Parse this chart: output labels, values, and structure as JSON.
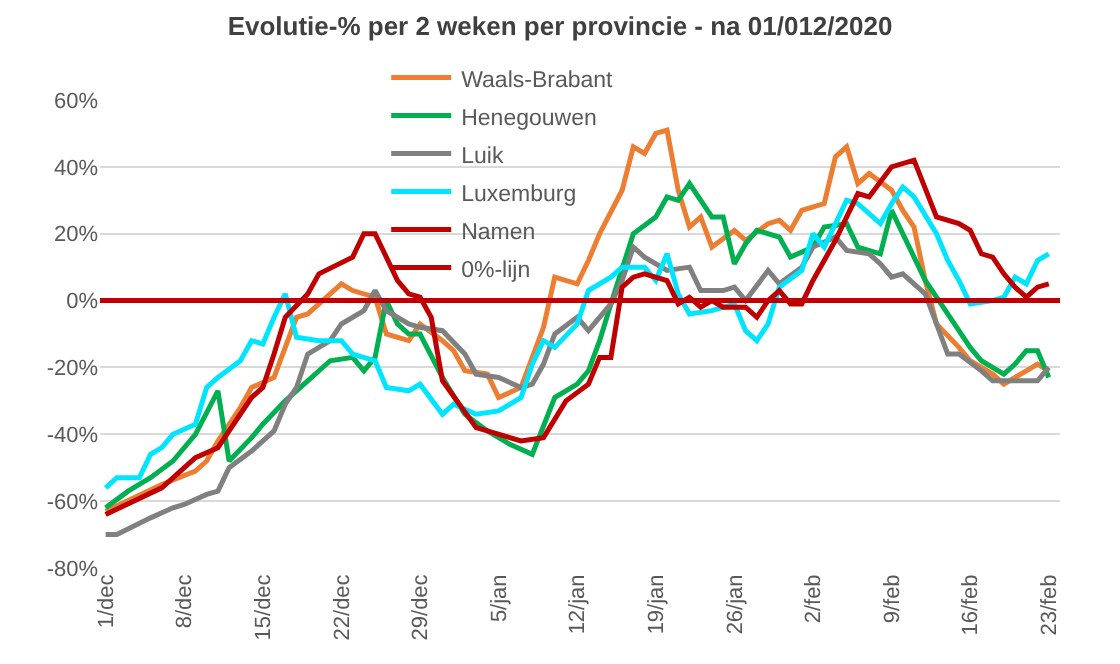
{
  "chart_data": {
    "type": "line",
    "title": "Evolutie-% per 2 weken per provincie - na 01/012/2020",
    "xlim": [
      "2020-11-30T12:00",
      "2021-02-24"
    ],
    "ylim": [
      -80,
      60
    ],
    "xticks": [
      {
        "value": "2020-12-01",
        "label": "1/dec"
      },
      {
        "value": "2020-12-08",
        "label": "8/dec"
      },
      {
        "value": "2020-12-15",
        "label": "15/dec"
      },
      {
        "value": "2020-12-22",
        "label": "22/dec"
      },
      {
        "value": "2020-12-29",
        "label": "29/dec"
      },
      {
        "value": "2021-01-05",
        "label": "5/jan"
      },
      {
        "value": "2021-01-12",
        "label": "12/jan"
      },
      {
        "value": "2021-01-19",
        "label": "19/jan"
      },
      {
        "value": "2021-01-26",
        "label": "26/jan"
      },
      {
        "value": "2021-02-02",
        "label": "2/feb"
      },
      {
        "value": "2021-02-09",
        "label": "9/feb"
      },
      {
        "value": "2021-02-16",
        "label": "16/feb"
      },
      {
        "value": "2021-02-23",
        "label": "23/feb"
      }
    ],
    "yticks": [
      {
        "value": -80,
        "label": "-80%"
      },
      {
        "value": -60,
        "label": "-60%"
      },
      {
        "value": -40,
        "label": "-40%"
      },
      {
        "value": -20,
        "label": "-20%"
      },
      {
        "value": 0,
        "label": "0%"
      },
      {
        "value": 20,
        "label": "20%"
      },
      {
        "value": 40,
        "label": "40%"
      },
      {
        "value": 60,
        "label": "60%"
      }
    ],
    "grid": "y",
    "legend": "top",
    "marker": "none",
    "line_style": "solid",
    "ref_lines": [
      {
        "axis": "y",
        "value": 0,
        "label": "0%-lijn",
        "color": "#c00000"
      }
    ],
    "series": [
      {
        "name": "Waals-Brabant",
        "color": "#ed7d31",
        "x": [
          "2020-12-01",
          "2020-12-06",
          "2020-12-09",
          "2020-12-10",
          "2020-12-11",
          "2020-12-13",
          "2020-12-14",
          "2020-12-16",
          "2020-12-17",
          "2020-12-18",
          "2020-12-19",
          "2020-12-20",
          "2020-12-21",
          "2020-12-22",
          "2020-12-23",
          "2020-12-25",
          "2020-12-26",
          "2020-12-28",
          "2020-12-29",
          "2020-12-31",
          "2021-01-01",
          "2021-01-02",
          "2021-01-04",
          "2021-01-05",
          "2021-01-07",
          "2021-01-08",
          "2021-01-09",
          "2021-01-10",
          "2021-01-12",
          "2021-01-13",
          "2021-01-14",
          "2021-01-16",
          "2021-01-17",
          "2021-01-18",
          "2021-01-19",
          "2021-01-20",
          "2021-01-21",
          "2021-01-22",
          "2021-01-23",
          "2021-01-24",
          "2021-01-26",
          "2021-01-27",
          "2021-01-29",
          "2021-01-30",
          "2021-01-31",
          "2021-02-01",
          "2021-02-03",
          "2021-02-04",
          "2021-02-05",
          "2021-02-06",
          "2021-02-07",
          "2021-02-09",
          "2021-02-10",
          "2021-02-11",
          "2021-02-12",
          "2021-02-13",
          "2021-02-15",
          "2021-02-16",
          "2021-02-18",
          "2021-02-19",
          "2021-02-21",
          "2021-02-22",
          "2021-02-23"
        ],
        "values": [
          -63,
          -55,
          -51,
          -48,
          -42,
          -32,
          -26,
          -23,
          -14,
          -5,
          -4,
          -1,
          2,
          5,
          3,
          1,
          -10,
          -12,
          -7,
          -12,
          -15,
          -21,
          -22,
          -29,
          -26,
          -17,
          -8,
          7,
          5,
          12,
          20,
          33,
          46,
          44,
          50,
          51,
          33,
          22,
          25,
          16,
          21,
          18,
          23,
          24,
          21,
          27,
          29,
          43,
          46,
          35,
          38,
          33,
          27,
          22,
          6,
          -7,
          -14,
          -18,
          -22,
          -25,
          -21,
          -19,
          -21
        ]
      },
      {
        "name": "Henegouwen",
        "color": "#00b050",
        "x": [
          "2020-12-01",
          "2020-12-03",
          "2020-12-05",
          "2020-12-07",
          "2020-12-09",
          "2020-12-11",
          "2020-12-12",
          "2020-12-14",
          "2020-12-15",
          "2020-12-17",
          "2020-12-19",
          "2020-12-21",
          "2020-12-23",
          "2020-12-24",
          "2020-12-25",
          "2020-12-26",
          "2020-12-27",
          "2020-12-28",
          "2020-12-29",
          "2020-12-31",
          "2021-01-02",
          "2021-01-04",
          "2021-01-06",
          "2021-01-08",
          "2021-01-10",
          "2021-01-12",
          "2021-01-13",
          "2021-01-14",
          "2021-01-15",
          "2021-01-17",
          "2021-01-19",
          "2021-01-20",
          "2021-01-21",
          "2021-01-22",
          "2021-01-24",
          "2021-01-25",
          "2021-01-26",
          "2021-01-27",
          "2021-01-28",
          "2021-01-30",
          "2021-01-31",
          "2021-02-02",
          "2021-02-03",
          "2021-02-05",
          "2021-02-06",
          "2021-02-08",
          "2021-02-09",
          "2021-02-11",
          "2021-02-12",
          "2021-02-13",
          "2021-02-15",
          "2021-02-16",
          "2021-02-17",
          "2021-02-19",
          "2021-02-20",
          "2021-02-21",
          "2021-02-22",
          "2021-02-23"
        ],
        "values": [
          -62,
          -57,
          -53,
          -48,
          -40,
          -27,
          -48,
          -41,
          -37,
          -30,
          -24,
          -18,
          -17,
          -21,
          -17,
          0,
          -7,
          -10,
          -10,
          -23,
          -34,
          -39,
          -43,
          -46,
          -29,
          -25,
          -21,
          -12,
          -1,
          20,
          25,
          31,
          30,
          35,
          25,
          25,
          11,
          17,
          21,
          19,
          13,
          16,
          22,
          23,
          16,
          14,
          27,
          13,
          6,
          1,
          -9,
          -14,
          -18,
          -22,
          -19,
          -15,
          -15,
          -23
        ]
      },
      {
        "name": "Luik",
        "color": "#808080",
        "x": [
          "2020-12-01",
          "2020-12-02",
          "2020-12-05",
          "2020-12-07",
          "2020-12-08",
          "2020-12-10",
          "2020-12-11",
          "2020-12-12",
          "2020-12-14",
          "2020-12-16",
          "2020-12-17",
          "2020-12-18",
          "2020-12-19",
          "2020-12-21",
          "2020-12-22",
          "2020-12-24",
          "2020-12-25",
          "2020-12-26",
          "2020-12-28",
          "2020-12-29",
          "2020-12-31",
          "2021-01-02",
          "2021-01-03",
          "2021-01-05",
          "2021-01-07",
          "2021-01-08",
          "2021-01-09",
          "2021-01-10",
          "2021-01-12",
          "2021-01-13",
          "2021-01-15",
          "2021-01-16",
          "2021-01-17",
          "2021-01-18",
          "2021-01-20",
          "2021-01-22",
          "2021-01-23",
          "2021-01-25",
          "2021-01-26",
          "2021-01-27",
          "2021-01-29",
          "2021-01-30",
          "2021-02-01",
          "2021-02-02",
          "2021-02-04",
          "2021-02-05",
          "2021-02-07",
          "2021-02-08",
          "2021-02-09",
          "2021-02-10",
          "2021-02-12",
          "2021-02-13",
          "2021-02-14",
          "2021-02-15",
          "2021-02-17",
          "2021-02-18",
          "2021-02-20",
          "2021-02-22",
          "2021-02-23"
        ],
        "values": [
          -70,
          -70,
          -65,
          -62,
          -61,
          -58,
          -57,
          -50,
          -45,
          -39,
          -31,
          -26,
          -16,
          -12,
          -7,
          -3,
          3,
          -3,
          -7,
          -8,
          -9,
          -16,
          -22,
          -23,
          -26,
          -25,
          -19,
          -10,
          -5,
          -9,
          -1,
          6,
          16,
          13,
          9,
          10,
          3,
          3,
          4,
          0,
          9,
          5,
          10,
          16,
          19,
          15,
          14,
          11,
          7,
          8,
          2,
          -7,
          -16,
          -16,
          -21,
          -24,
          -24,
          -24,
          -20
        ]
      },
      {
        "name": "Luxemburg",
        "color": "#00e5ff",
        "x": [
          "2020-12-01",
          "2020-12-02",
          "2020-12-04",
          "2020-12-05",
          "2020-12-06",
          "2020-12-07",
          "2020-12-09",
          "2020-12-10",
          "2020-12-11",
          "2020-12-13",
          "2020-12-14",
          "2020-12-15",
          "2020-12-16",
          "2020-12-17",
          "2020-12-18",
          "2020-12-20",
          "2020-12-22",
          "2020-12-23",
          "2020-12-25",
          "2020-12-26",
          "2020-12-28",
          "2020-12-29",
          "2020-12-31",
          "2021-01-01",
          "2021-01-03",
          "2021-01-05",
          "2021-01-07",
          "2021-01-08",
          "2021-01-09",
          "2021-01-10",
          "2021-01-12",
          "2021-01-13",
          "2021-01-15",
          "2021-01-16",
          "2021-01-18",
          "2021-01-19",
          "2021-01-20",
          "2021-01-21",
          "2021-01-22",
          "2021-01-24",
          "2021-01-26",
          "2021-01-27",
          "2021-01-28",
          "2021-01-29",
          "2021-01-30",
          "2021-02-01",
          "2021-02-02",
          "2021-02-03",
          "2021-02-05",
          "2021-02-06",
          "2021-02-08",
          "2021-02-09",
          "2021-02-10",
          "2021-02-11",
          "2021-02-13",
          "2021-02-14",
          "2021-02-15",
          "2021-02-16",
          "2021-02-18",
          "2021-02-19",
          "2021-02-20",
          "2021-02-21",
          "2021-02-22",
          "2021-02-23"
        ],
        "values": [
          -56,
          -53,
          -53,
          -46,
          -44,
          -40,
          -37,
          -26,
          -23,
          -18,
          -12,
          -13,
          -5,
          2,
          -11,
          -12,
          -12,
          -16,
          -18,
          -26,
          -27,
          -25,
          -34,
          -31,
          -34,
          -33,
          -29,
          -19,
          -12,
          -14,
          -7,
          3,
          7,
          10,
          10,
          6,
          14,
          2,
          -4,
          -3,
          -1,
          -9,
          -12,
          -7,
          4,
          9,
          20,
          16,
          30,
          29,
          23,
          29,
          34,
          31,
          20,
          12,
          6,
          -1,
          0,
          1,
          7,
          5,
          12,
          14
        ]
      },
      {
        "name": "Namen",
        "color": "#c00000",
        "x": [
          "2020-12-01",
          "2020-12-06",
          "2020-12-09",
          "2020-12-11",
          "2020-12-12",
          "2020-12-14",
          "2020-12-15",
          "2020-12-16",
          "2020-12-17",
          "2020-12-19",
          "2020-12-20",
          "2020-12-23",
          "2020-12-24",
          "2020-12-25",
          "2020-12-27",
          "2020-12-28",
          "2020-12-29",
          "2020-12-30",
          "2020-12-31",
          "2021-01-03",
          "2021-01-04",
          "2021-01-07",
          "2021-01-09",
          "2021-01-11",
          "2021-01-13",
          "2021-01-14",
          "2021-01-15",
          "2021-01-16",
          "2021-01-17",
          "2021-01-18",
          "2021-01-20",
          "2021-01-21",
          "2021-01-22",
          "2021-01-23",
          "2021-01-24",
          "2021-01-25",
          "2021-01-27",
          "2021-01-28",
          "2021-01-29",
          "2021-01-30",
          "2021-01-31",
          "2021-02-01",
          "2021-02-02",
          "2021-02-04",
          "2021-02-06",
          "2021-02-07",
          "2021-02-09",
          "2021-02-11",
          "2021-02-13",
          "2021-02-15",
          "2021-02-16",
          "2021-02-17",
          "2021-02-18",
          "2021-02-19",
          "2021-02-20",
          "2021-02-21",
          "2021-02-22",
          "2021-02-23"
        ],
        "values": [
          -64,
          -56,
          -47,
          -44,
          -39,
          -29,
          -26,
          -16,
          -5,
          2,
          8,
          13,
          20,
          20,
          6,
          2,
          1,
          -5,
          -24,
          -38,
          -39,
          -42,
          -41,
          -30,
          -25,
          -17,
          -17,
          4,
          7,
          8,
          6,
          -1,
          1,
          -2,
          0,
          -2,
          -2,
          -5,
          0,
          3,
          -1,
          -1,
          6,
          18,
          32,
          31,
          40,
          42,
          25,
          23,
          21,
          14,
          13,
          8,
          4,
          1,
          4,
          5
        ]
      }
    ]
  }
}
